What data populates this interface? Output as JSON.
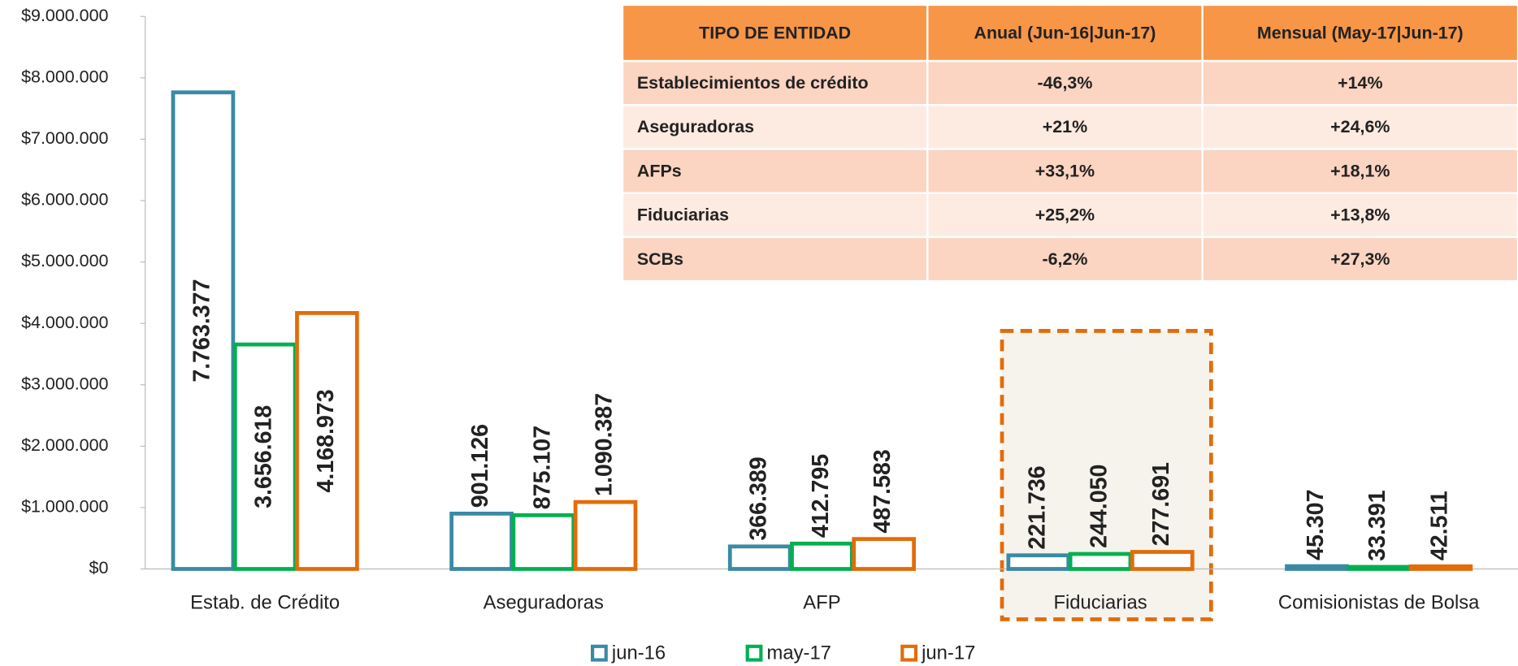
{
  "chart_data": {
    "type": "bar",
    "categories": [
      "Estab. de Crédito",
      "Aseguradoras",
      "AFP",
      "Fiduciarias",
      "Comisionistas de Bolsa"
    ],
    "series": [
      {
        "name": "jun-16",
        "color": "#3a8aa5",
        "label_color": "#3a8aa5",
        "values": [
          7763377,
          901126,
          366389,
          221736,
          45307
        ],
        "value_labels": [
          "7.763.377",
          "901.126",
          "366.389",
          "221.736",
          "45.307"
        ]
      },
      {
        "name": "may-17",
        "color": "#00b050",
        "label_color": "#0b8a2a",
        "values": [
          3656618,
          875107,
          412795,
          244050,
          33391
        ],
        "value_labels": [
          "3.656.618",
          "875.107",
          "412.795",
          "244.050",
          "33.391"
        ]
      },
      {
        "name": "jun-17",
        "color": "#e36c09",
        "label_color": "#e36c09",
        "values": [
          4168973,
          1090387,
          487583,
          277691,
          42511
        ],
        "value_labels": [
          "4.168.973",
          "1.090.387",
          "487.583",
          "277.691",
          "42.511"
        ]
      }
    ],
    "ylim": [
      0,
      9000000
    ],
    "yticks": [
      {
        "value": 0,
        "label": "$0"
      },
      {
        "value": 1000000,
        "label": "$1.000.000"
      },
      {
        "value": 2000000,
        "label": "$2.000.000"
      },
      {
        "value": 3000000,
        "label": "$3.000.000"
      },
      {
        "value": 4000000,
        "label": "$4.000.000"
      },
      {
        "value": 5000000,
        "label": "$5.000.000"
      },
      {
        "value": 6000000,
        "label": "$6.000.000"
      },
      {
        "value": 7000000,
        "label": "$7.000.000"
      },
      {
        "value": 8000000,
        "label": "$8.000.000"
      },
      {
        "value": 9000000,
        "label": "$9.000.000"
      }
    ],
    "grid": false,
    "legend": "bottom"
  },
  "table": {
    "header": [
      "TIPO DE ENTIDAD",
      "Anual (Jun-16|Jun-17)",
      "Mensual (May-17|Jun-17)"
    ],
    "rows": [
      [
        "Establecimientos de crédito",
        "-46,3%",
        "+14%"
      ],
      [
        "Aseguradoras",
        "+21%",
        "+24,6%"
      ],
      [
        "AFPs",
        "+33,1%",
        "+18,1%"
      ],
      [
        "Fiduciarias",
        "+25,2%",
        "+13,8%"
      ],
      [
        "SCBs",
        "-6,2%",
        "+27,3%"
      ]
    ]
  }
}
